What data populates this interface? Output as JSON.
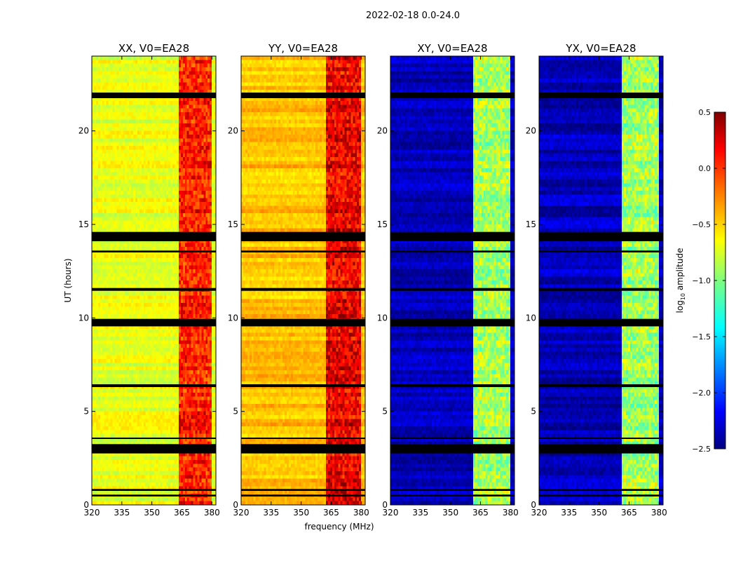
{
  "suptitle": "2022-02-18 0.0-24.0",
  "chart_data": {
    "type": "heatmap",
    "xlabel": "frequency (MHz)",
    "ylabel": "UT (hours)",
    "xlim": [
      320,
      382
    ],
    "ylim": [
      0,
      24
    ],
    "xticks": [
      320,
      335,
      350,
      365,
      380
    ],
    "yticks": [
      0,
      5,
      10,
      15,
      20
    ],
    "blanked_ut_bands": [
      [
        0.45,
        0.55
      ],
      [
        0.75,
        0.85
      ],
      [
        2.75,
        3.25
      ],
      [
        3.55,
        3.6
      ],
      [
        6.3,
        6.45
      ],
      [
        9.55,
        9.95
      ],
      [
        11.45,
        11.6
      ],
      [
        13.5,
        13.6
      ],
      [
        14.1,
        14.6
      ],
      [
        21.75,
        22.05
      ]
    ],
    "colorbar": {
      "label": "log10 amplitude",
      "label_base": "log",
      "label_sub": "10",
      "label_rest": " amplitude",
      "vmin": -2.5,
      "vmax": 0.5,
      "ticks": [
        0.5,
        0.0,
        -0.5,
        -1.0,
        -1.5,
        -2.0,
        -2.5
      ],
      "tick_labels": [
        "0.5",
        "0.0",
        "−0.5",
        "−1.0",
        "−1.5",
        "−2.0",
        "−2.5"
      ],
      "colormap": "jet"
    },
    "panels": [
      {
        "title": "XX, V0=EA28",
        "base_level": -0.7,
        "rfi_band_mhz": [
          363,
          380
        ],
        "rfi_level": 0.05
      },
      {
        "title": "YY, V0=EA28",
        "base_level": -0.45,
        "rfi_band_mhz": [
          362,
          380
        ],
        "rfi_level": 0.2
      },
      {
        "title": "XY, V0=EA28",
        "base_level": -2.35,
        "rfi_band_mhz": [
          361,
          380
        ],
        "rfi_level": -0.9
      },
      {
        "title": "YX, V0=EA28",
        "base_level": -2.35,
        "rfi_band_mhz": [
          361,
          380
        ],
        "rfi_level": -0.9
      }
    ]
  }
}
